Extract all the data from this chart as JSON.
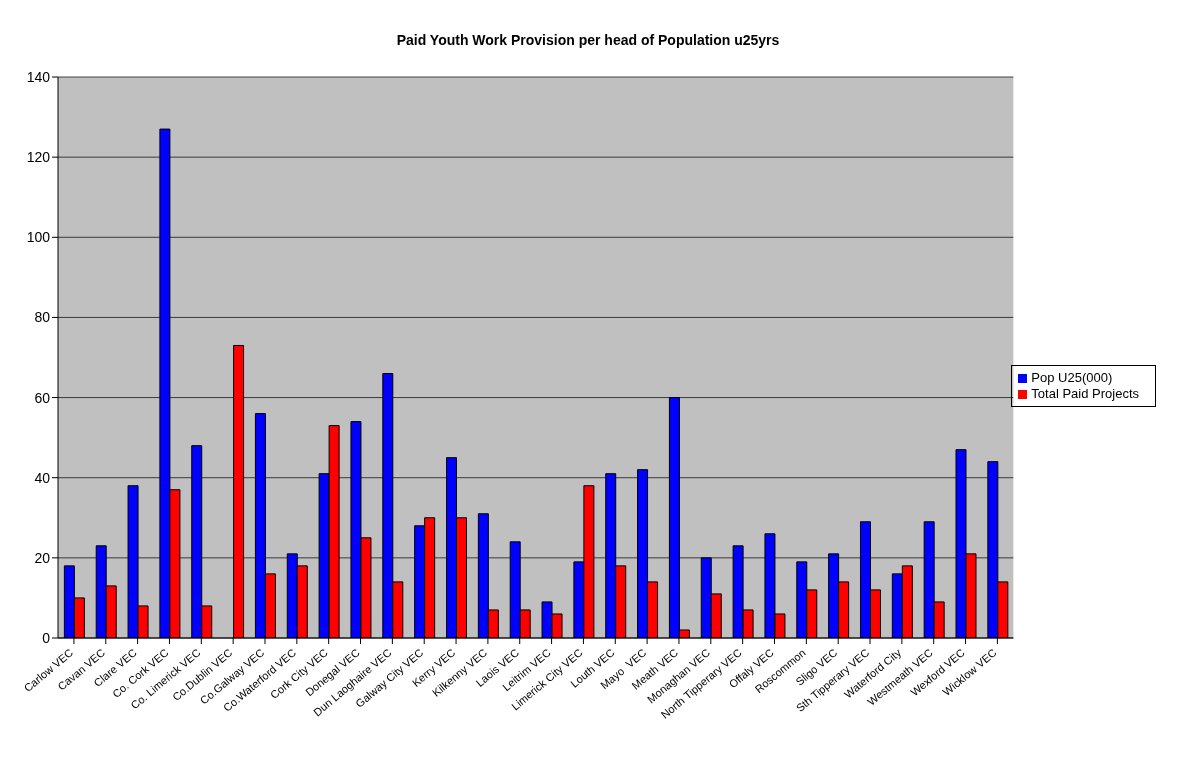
{
  "chart_data": {
    "type": "bar",
    "title": "Paid Youth Work Provision per head of Population u25yrs",
    "categories": [
      "Carlow VEC",
      "Cavan VEC",
      "Clare VEC",
      "Co. Cork VEC",
      "Co. Limerick VEC",
      "Co.Dublin VEC",
      "Co.Galway VEC",
      "Co.Waterford VEC",
      "Cork City VEC",
      "Donegal VEC",
      "Dun Laoghaire VEC",
      "Galway City VEC",
      "Kerry VEC",
      "Kilkenny VEC",
      "Laois VEC",
      "Leitrim VEC",
      "Limerick City VEC",
      "Louth VEC",
      "Mayo  VEC",
      "Meath VEC",
      "Monaghan VEC",
      "North Tipperary VEC",
      "Offaly VEC",
      "Roscommon",
      "Sligo VEC",
      "Sth Tipperary VEC",
      "Waterford City",
      "Westmeath VEC",
      "Wexford VEC",
      "Wicklow VEC"
    ],
    "series": [
      {
        "name": "Pop U25(000)",
        "color": "#0000ff",
        "values": [
          18,
          23,
          38,
          127,
          48,
          null,
          56,
          21,
          41,
          54,
          66,
          28,
          45,
          31,
          24,
          9,
          19,
          41,
          42,
          60,
          20,
          23,
          26,
          19,
          21,
          29,
          16,
          29,
          47,
          44
        ]
      },
      {
        "name": "Total Paid Projects",
        "color": "#ff0000",
        "values": [
          10,
          13,
          8,
          37,
          8,
          73,
          16,
          18,
          53,
          25,
          14,
          30,
          30,
          7,
          7,
          6,
          38,
          18,
          14,
          2,
          11,
          7,
          6,
          12,
          14,
          12,
          18,
          9,
          21,
          14
        ]
      }
    ],
    "ylim": [
      0,
      140
    ],
    "yticks": [
      0,
      20,
      40,
      60,
      80,
      100,
      120,
      140
    ],
    "grid": "y",
    "legend": "right"
  }
}
